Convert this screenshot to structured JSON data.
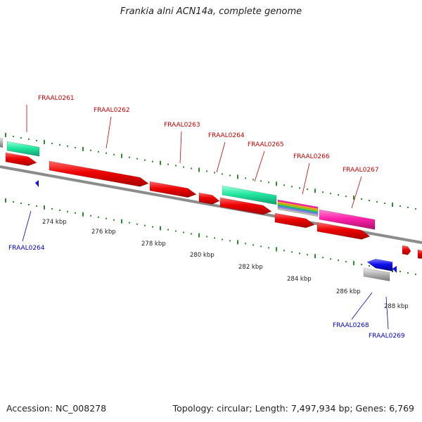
{
  "title": "Frankia alni ACN14a, complete genome",
  "footer": {
    "accession": "Accession: NC_008278",
    "summary": "Topology: circular; Length: 7,497,934 bp; Genes: 6,769"
  },
  "colors": {
    "forward_label": "#cc0000",
    "reverse_label": "#0000cc",
    "tick": "#2e8b2e",
    "backbone": "#8c8c8c",
    "cds": "#ee0000",
    "reverse_gene": "#1010ee",
    "teal_feature": "#22e8a0",
    "pink_feature": "#ff22aa",
    "grey_feature": "#b8b8b8"
  },
  "axis_labels": [
    "274 kbp",
    "276 kbp",
    "278 kbp",
    "280 kbp",
    "282 kbp",
    "284 kbp",
    "286 kbp",
    "288 kbp"
  ],
  "forward_genes": [
    "FRAAL0261",
    "FRAAL0262",
    "FRAAL0263",
    "FRAAL0264",
    "FRAAL0265",
    "FRAAL0266",
    "FRAAL0267"
  ],
  "reverse_genes": [
    "FRAAL0264",
    "FRAAL0268",
    "FRAAL0269"
  ]
}
